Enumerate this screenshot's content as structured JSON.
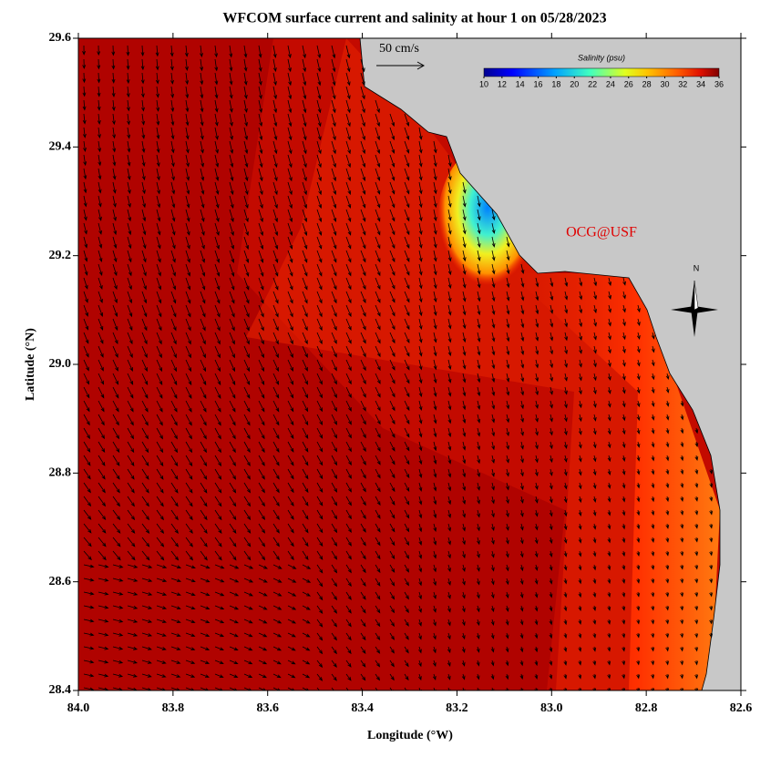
{
  "title": "WFCOM surface current and salinity at hour 1 on 05/28/2023",
  "map": {
    "xlabel": "Longitude (°W)",
    "ylabel": "Latitude (°N)",
    "xlim": [
      84.0,
      82.6
    ],
    "ylim": [
      28.4,
      29.6
    ],
    "xticks": [
      {
        "value": 84.0,
        "label": "84.0"
      },
      83.8,
      83.6,
      83.4,
      83.2,
      {
        "value": 83.0,
        "label": "83.0"
      },
      82.8,
      82.6
    ],
    "yticks": [
      28.4,
      28.6,
      28.8,
      {
        "value": 29.0,
        "label": "29.0"
      },
      29.2,
      29.4,
      29.6
    ]
  },
  "colorbar": {
    "label": "Salinity (psu)",
    "lim": [
      10,
      36
    ],
    "ticks": [
      10,
      12,
      14,
      16,
      18,
      20,
      22,
      24,
      26,
      28,
      30,
      32,
      34,
      36
    ]
  },
  "scale_label": "50 cm/s",
  "credit": "OCG@USF",
  "compass": "N"
}
